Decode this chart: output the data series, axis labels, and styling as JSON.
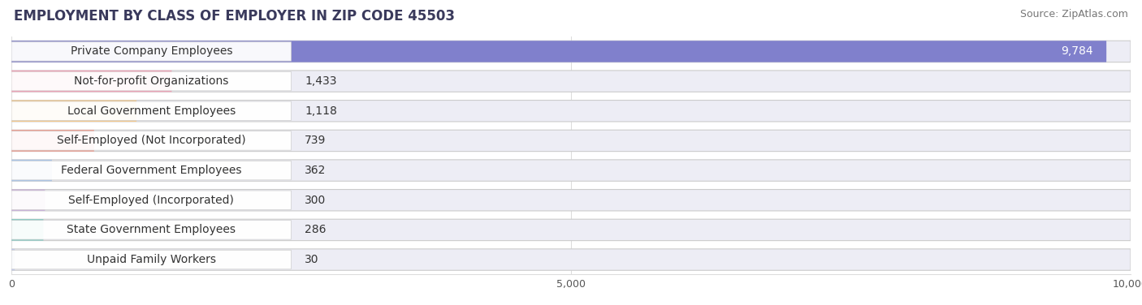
{
  "title": "EMPLOYMENT BY CLASS OF EMPLOYER IN ZIP CODE 45503",
  "source": "Source: ZipAtlas.com",
  "categories": [
    "Private Company Employees",
    "Not-for-profit Organizations",
    "Local Government Employees",
    "Self-Employed (Not Incorporated)",
    "Federal Government Employees",
    "Self-Employed (Incorporated)",
    "State Government Employees",
    "Unpaid Family Workers"
  ],
  "values": [
    9784,
    1433,
    1118,
    739,
    362,
    300,
    286,
    30
  ],
  "bar_colors": [
    "#8080cc",
    "#f4a0b5",
    "#f5c98a",
    "#f09080",
    "#a8c4e8",
    "#c8b0d8",
    "#7ec8c0",
    "#c0c8e8"
  ],
  "xlim": [
    0,
    10000
  ],
  "xticks": [
    0,
    5000,
    10000
  ],
  "xticklabels": [
    "0",
    "5,000",
    "10,000"
  ],
  "background_color": "#ffffff",
  "bar_bg_color": "#ededf5",
  "label_bg_color": "#ffffff",
  "title_fontsize": 12,
  "source_fontsize": 9,
  "label_fontsize": 10,
  "value_fontsize": 10,
  "grid_color": "#dddddd"
}
